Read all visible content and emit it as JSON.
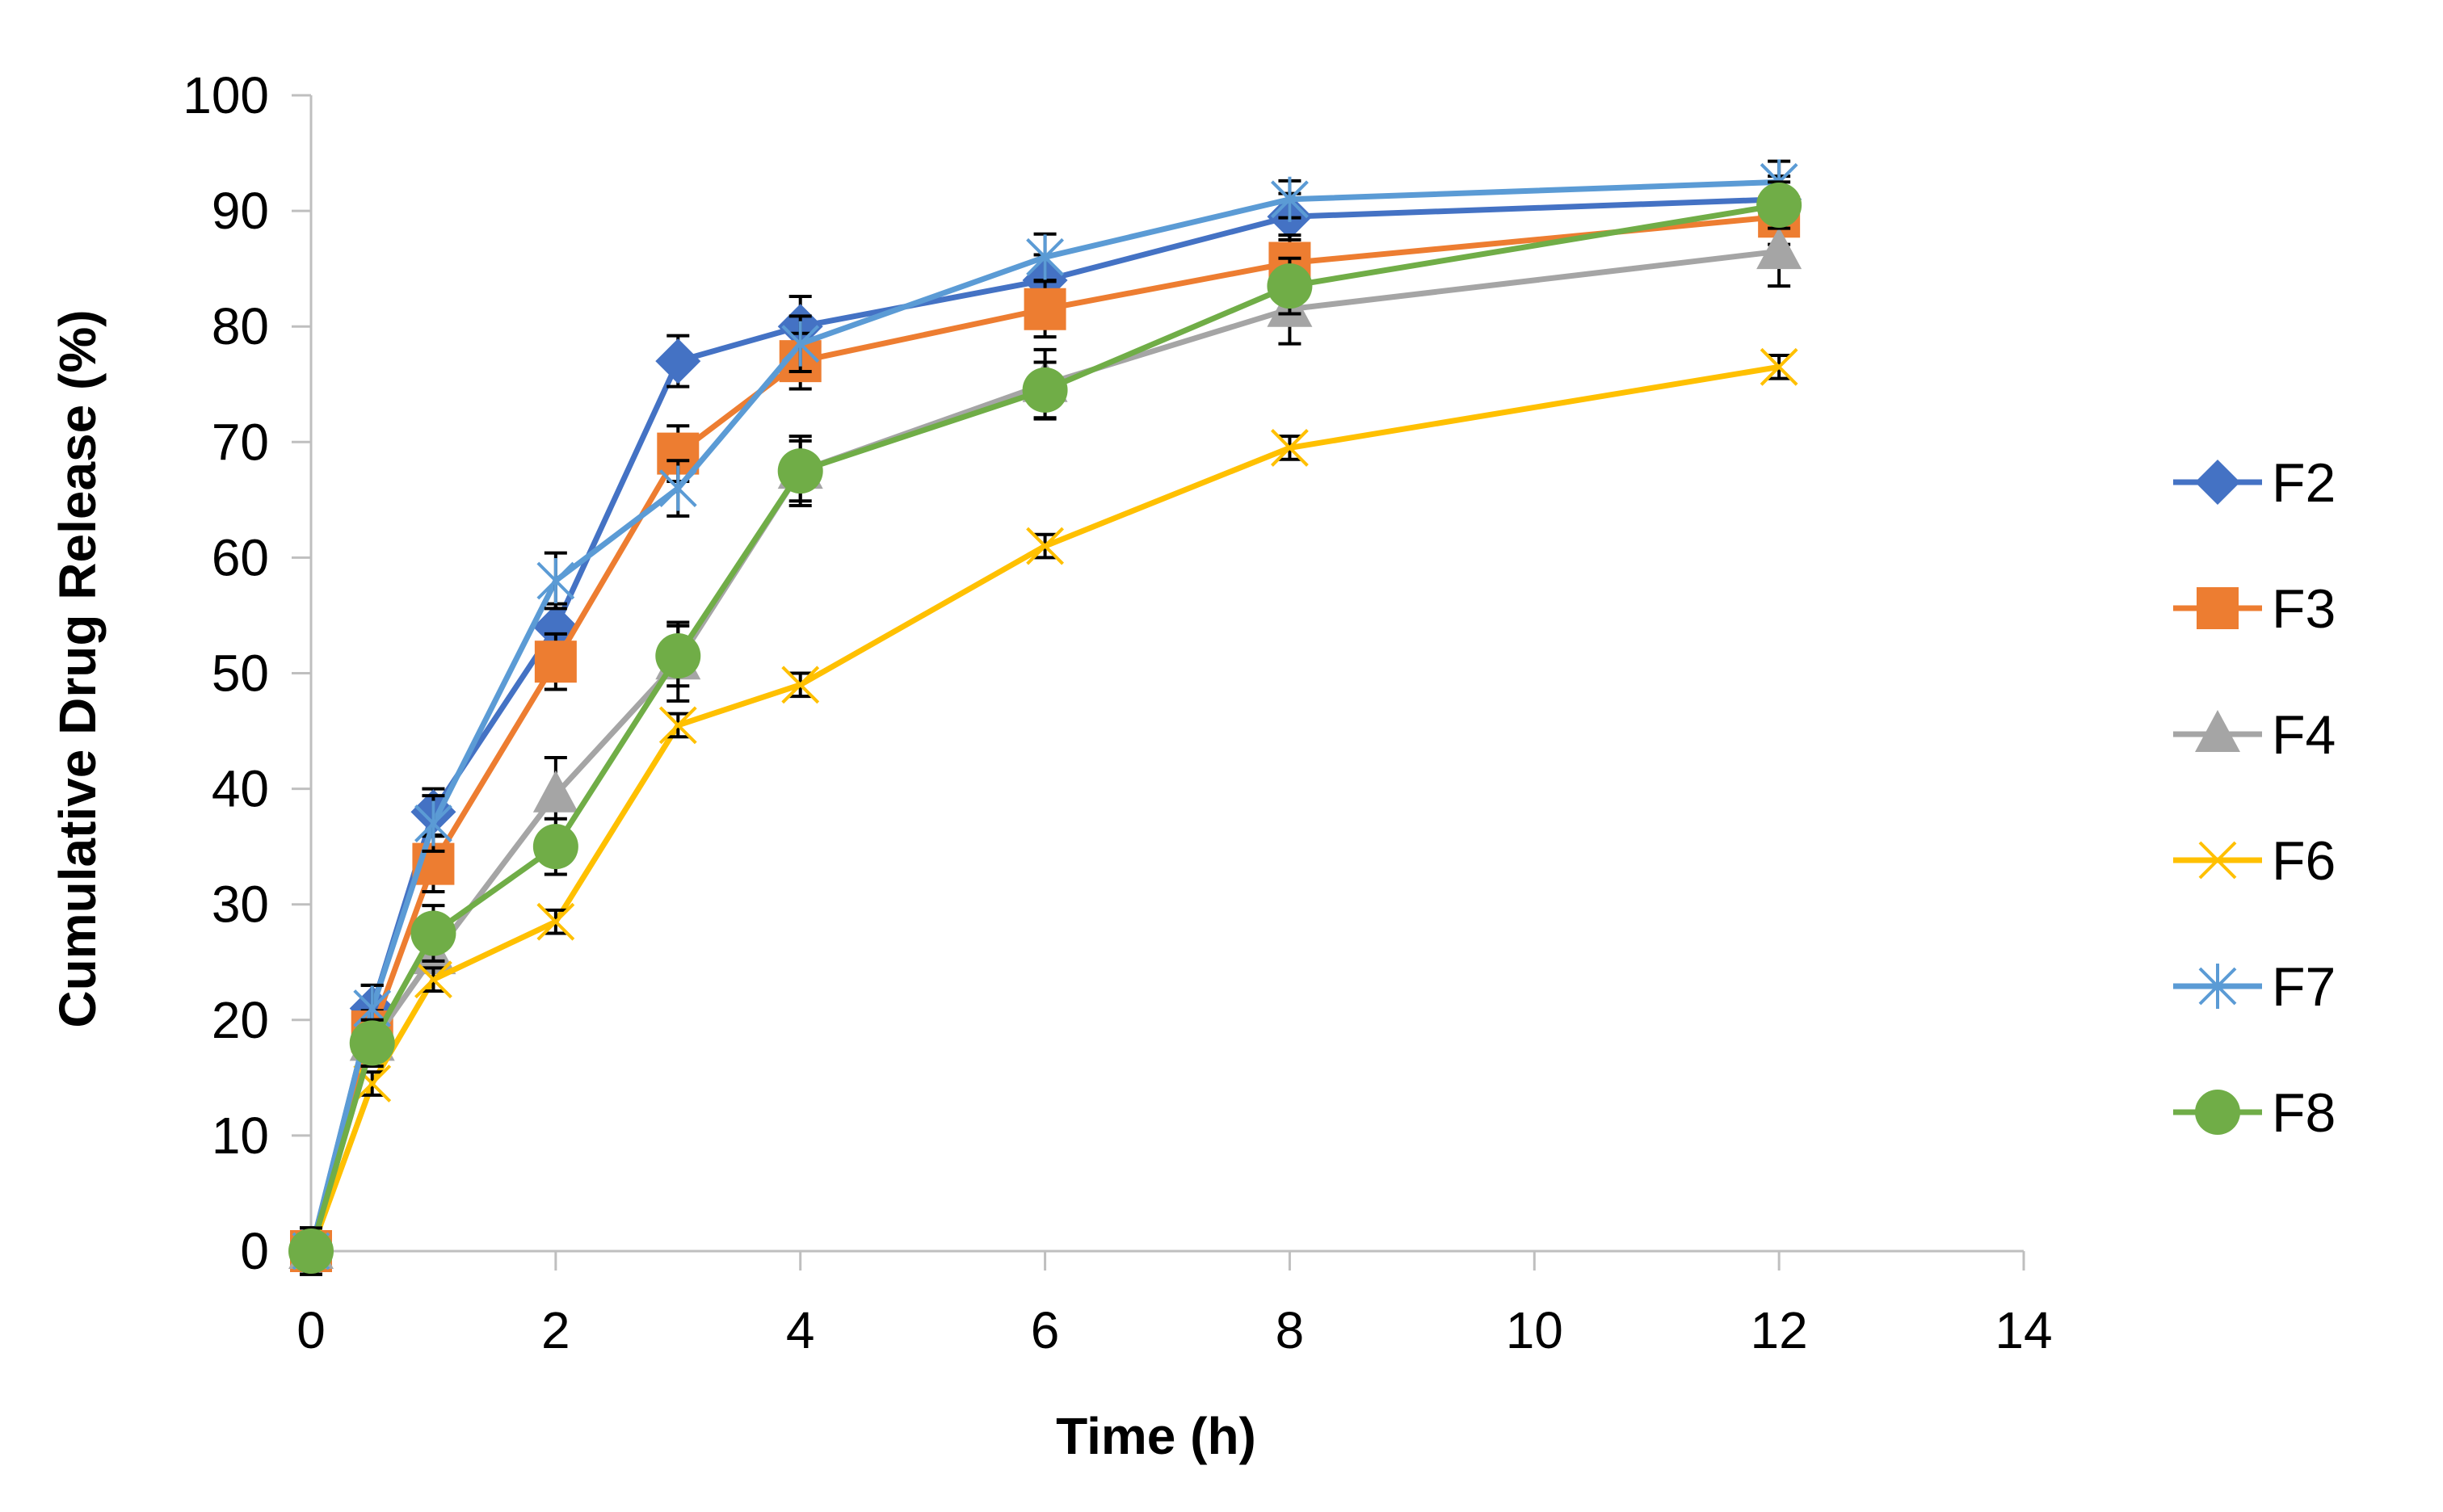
{
  "chart_data": {
    "type": "line",
    "title": "",
    "xlabel": "Time (h)",
    "ylabel": "Cumulative Drug Release (%)",
    "xlim": [
      0,
      14
    ],
    "ylim": [
      0,
      100
    ],
    "x_ticks": [
      "0",
      "2",
      "4",
      "6",
      "8",
      "10",
      "12",
      "14"
    ],
    "y_ticks": [
      "0",
      "10",
      "20",
      "30",
      "40",
      "50",
      "60",
      "70",
      "80",
      "90",
      "100"
    ],
    "grid": false,
    "legend_position": "right",
    "x": [
      0,
      0.5,
      1,
      2,
      3,
      4,
      6,
      8,
      12
    ],
    "series": [
      {
        "name": "F2",
        "color": "#4472C4",
        "marker": "diamond",
        "values": [
          0,
          21,
          38,
          54,
          77,
          80,
          84,
          89.5,
          91
        ],
        "errors": [
          2,
          2,
          2,
          2,
          2.2,
          2.6,
          2.2,
          2.0,
          2.0
        ]
      },
      {
        "name": "F3",
        "color": "#ED7D31",
        "marker": "square",
        "values": [
          0,
          19,
          33.5,
          51,
          69,
          77,
          81.5,
          85.5,
          89.5
        ],
        "errors": [
          2,
          1.8,
          2.4,
          2.4,
          2.4,
          2.4,
          2.4,
          2.4,
          2.4
        ]
      },
      {
        "name": "F4",
        "color": "#A5A5A5",
        "marker": "triangle",
        "values": [
          0,
          18,
          25.5,
          39.5,
          51,
          67.5,
          75,
          81.5,
          86.5
        ],
        "errors": [
          2,
          2.0,
          3.0,
          3.2,
          3.4,
          3.0,
          3.0,
          3.0,
          3.0
        ]
      },
      {
        "name": "F6",
        "color": "#FFC000",
        "marker": "x",
        "values": [
          0,
          14.5,
          23.5,
          28.5,
          45.5,
          49,
          61,
          69.5,
          76.5
        ],
        "errors": [
          2,
          1.0,
          1.0,
          1.0,
          1.0,
          1.0,
          1.0,
          1.0,
          1.0
        ]
      },
      {
        "name": "F7",
        "color": "#5B9BD5",
        "marker": "asterisk",
        "values": [
          0,
          21,
          37,
          58,
          66,
          78.5,
          86,
          91,
          92.5
        ],
        "errors": [
          2,
          2.0,
          2.4,
          2.4,
          2.4,
          2.4,
          2.0,
          1.6,
          1.8
        ]
      },
      {
        "name": "F8",
        "color": "#70AD47",
        "marker": "circle",
        "values": [
          0,
          18,
          27.5,
          35,
          51.5,
          67.5,
          74.5,
          83.5,
          90.5
        ],
        "errors": [
          2,
          2.0,
          2.4,
          2.4,
          2.6,
          2.6,
          2.4,
          2.4,
          2.0
        ]
      }
    ]
  }
}
